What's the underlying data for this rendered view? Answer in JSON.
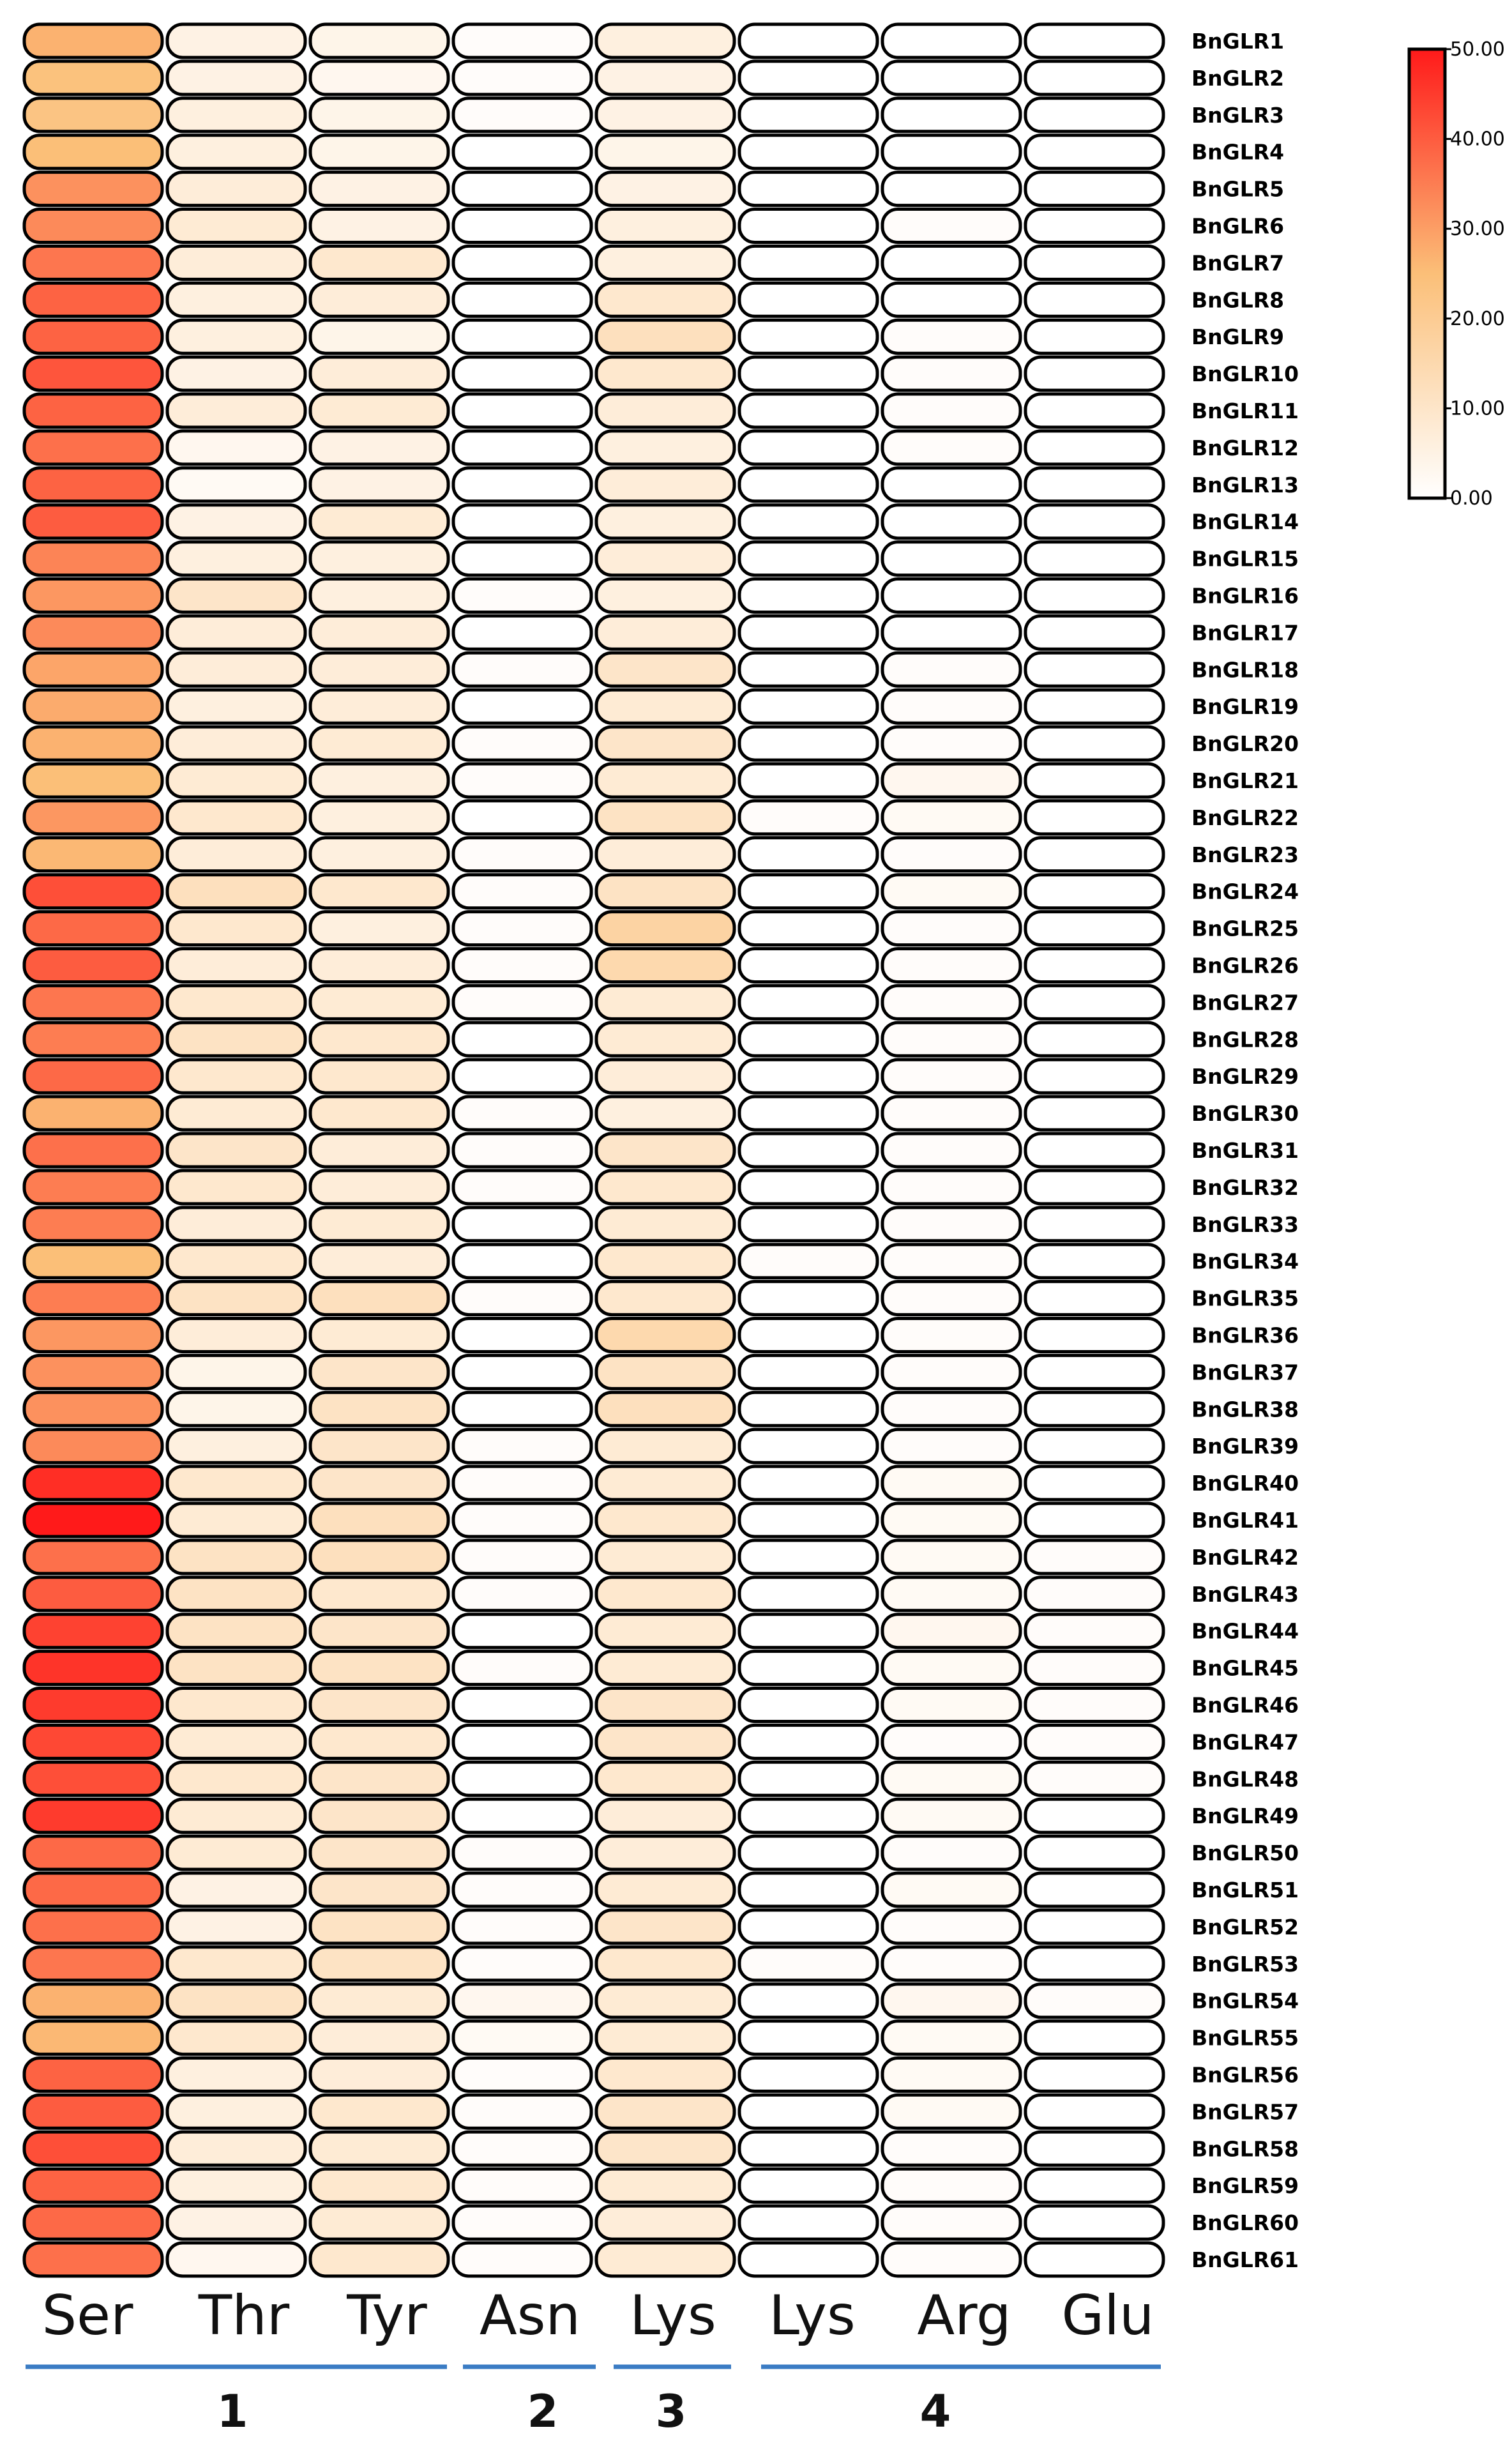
{
  "chart_data": {
    "type": "heatmap",
    "columns": [
      "Ser",
      "Thr",
      "Tyr",
      "Asn",
      "Lys",
      "Lys",
      "Arg",
      "Glu"
    ],
    "groups": [
      {
        "label": "1",
        "columns": [
          0,
          1,
          2
        ]
      },
      {
        "label": "2",
        "columns": [
          3
        ]
      },
      {
        "label": "3",
        "columns": [
          4
        ]
      },
      {
        "label": "4",
        "columns": [
          5,
          6,
          7
        ]
      }
    ],
    "rows": [
      "BnGLR1",
      "BnGLR2",
      "BnGLR3",
      "BnGLR4",
      "BnGLR5",
      "BnGLR6",
      "BnGLR7",
      "BnGLR8",
      "BnGLR9",
      "BnGLR10",
      "BnGLR11",
      "BnGLR12",
      "BnGLR13",
      "BnGLR14",
      "BnGLR15",
      "BnGLR16",
      "BnGLR17",
      "BnGLR18",
      "BnGLR19",
      "BnGLR20",
      "BnGLR21",
      "BnGLR22",
      "BnGLR23",
      "BnGLR24",
      "BnGLR25",
      "BnGLR26",
      "BnGLR27",
      "BnGLR28",
      "BnGLR29",
      "BnGLR30",
      "BnGLR31",
      "BnGLR32",
      "BnGLR33",
      "BnGLR34",
      "BnGLR35",
      "BnGLR36",
      "BnGLR37",
      "BnGLR38",
      "BnGLR39",
      "BnGLR40",
      "BnGLR41",
      "BnGLR42",
      "BnGLR43",
      "BnGLR44",
      "BnGLR45",
      "BnGLR46",
      "BnGLR47",
      "BnGLR48",
      "BnGLR49",
      "BnGLR50",
      "BnGLR51",
      "BnGLR52",
      "BnGLR53",
      "BnGLR54",
      "BnGLR55",
      "BnGLR56",
      "BnGLR57",
      "BnGLR58",
      "BnGLR59",
      "BnGLR60",
      "BnGLR61"
    ],
    "values": [
      [
        27,
        5,
        4,
        1,
        6,
        0,
        0,
        0
      ],
      [
        24,
        5,
        3,
        1,
        5,
        0,
        0,
        0
      ],
      [
        23,
        6,
        4,
        1,
        5,
        0,
        0,
        0
      ],
      [
        25,
        6,
        4,
        0,
        4,
        0,
        0,
        0
      ],
      [
        32,
        7,
        5,
        0,
        5,
        0,
        0,
        0
      ],
      [
        33,
        8,
        5,
        0,
        6,
        0,
        1,
        0
      ],
      [
        36,
        7,
        9,
        0,
        6,
        0,
        0,
        0
      ],
      [
        39,
        6,
        7,
        0,
        9,
        0,
        0,
        0
      ],
      [
        39,
        6,
        4,
        0,
        12,
        0,
        1,
        0
      ],
      [
        41,
        5,
        7,
        0,
        9,
        0,
        1,
        0
      ],
      [
        39,
        7,
        8,
        0,
        7,
        0,
        1,
        0
      ],
      [
        37,
        3,
        5,
        0,
        6,
        0,
        1,
        0
      ],
      [
        39,
        2,
        5,
        0,
        7,
        0,
        0,
        0
      ],
      [
        40,
        5,
        8,
        0,
        6,
        0,
        0,
        0
      ],
      [
        34,
        6,
        6,
        0,
        7,
        0,
        0,
        0
      ],
      [
        31,
        10,
        6,
        1,
        6,
        0,
        0,
        0
      ],
      [
        33,
        7,
        7,
        0,
        7,
        0,
        0,
        0
      ],
      [
        29,
        7,
        7,
        1,
        10,
        0,
        1,
        0
      ],
      [
        28,
        6,
        7,
        0,
        8,
        0,
        1,
        0
      ],
      [
        27,
        7,
        8,
        1,
        10,
        0,
        1,
        0
      ],
      [
        25,
        8,
        6,
        1,
        8,
        0,
        3,
        0
      ],
      [
        31,
        9,
        6,
        0,
        11,
        1,
        2,
        0
      ],
      [
        26,
        7,
        6,
        1,
        7,
        0,
        1,
        0
      ],
      [
        42,
        12,
        9,
        1,
        11,
        0,
        2,
        0
      ],
      [
        38,
        9,
        6,
        1,
        17,
        0,
        1,
        0
      ],
      [
        40,
        7,
        7,
        1,
        15,
        0,
        1,
        0
      ],
      [
        36,
        9,
        8,
        1,
        8,
        0,
        1,
        0
      ],
      [
        35,
        11,
        9,
        0,
        8,
        0,
        1,
        0
      ],
      [
        38,
        9,
        9,
        0,
        7,
        0,
        1,
        0
      ],
      [
        27,
        8,
        9,
        1,
        6,
        0,
        1,
        0
      ],
      [
        37,
        10,
        7,
        1,
        10,
        0,
        1,
        0
      ],
      [
        35,
        9,
        7,
        1,
        9,
        0,
        1,
        0
      ],
      [
        35,
        7,
        8,
        0,
        8,
        0,
        1,
        0
      ],
      [
        25,
        9,
        7,
        0,
        9,
        1,
        1,
        0
      ],
      [
        35,
        11,
        12,
        1,
        9,
        0,
        1,
        0
      ],
      [
        31,
        7,
        8,
        0,
        15,
        0,
        1,
        0
      ],
      [
        32,
        4,
        10,
        0,
        11,
        0,
        1,
        0
      ],
      [
        32,
        4,
        11,
        0,
        12,
        0,
        1,
        0
      ],
      [
        33,
        6,
        10,
        1,
        8,
        0,
        1,
        0
      ],
      [
        47,
        9,
        10,
        1,
        8,
        0,
        2,
        0
      ],
      [
        50,
        8,
        12,
        1,
        9,
        0,
        2,
        0
      ],
      [
        37,
        11,
        12,
        1,
        8,
        0,
        2,
        1
      ],
      [
        40,
        11,
        9,
        1,
        9,
        0,
        2,
        1
      ],
      [
        44,
        11,
        10,
        0,
        8,
        0,
        3,
        1
      ],
      [
        46,
        11,
        11,
        1,
        8,
        0,
        2,
        1
      ],
      [
        45,
        9,
        10,
        0,
        10,
        0,
        2,
        1
      ],
      [
        43,
        8,
        9,
        0,
        10,
        0,
        1,
        1
      ],
      [
        42,
        9,
        10,
        0,
        9,
        0,
        2,
        1
      ],
      [
        45,
        8,
        10,
        0,
        7,
        0,
        2,
        0
      ],
      [
        38,
        8,
        10,
        1,
        7,
        0,
        1,
        0
      ],
      [
        38,
        5,
        10,
        1,
        8,
        0,
        2,
        0
      ],
      [
        37,
        5,
        11,
        1,
        10,
        0,
        1,
        0
      ],
      [
        36,
        9,
        11,
        1,
        9,
        1,
        1,
        0
      ],
      [
        27,
        11,
        8,
        3,
        8,
        0,
        3,
        1
      ],
      [
        26,
        9,
        7,
        2,
        8,
        0,
        2,
        0
      ],
      [
        39,
        6,
        7,
        1,
        9,
        0,
        2,
        0
      ],
      [
        40,
        6,
        9,
        1,
        10,
        0,
        2,
        0
      ],
      [
        42,
        7,
        8,
        1,
        10,
        0,
        1,
        0
      ],
      [
        39,
        6,
        9,
        1,
        8,
        0,
        1,
        0
      ],
      [
        38,
        5,
        8,
        1,
        7,
        0,
        1,
        0
      ],
      [
        37,
        3,
        9,
        1,
        8,
        0,
        1,
        0
      ]
    ],
    "scale": {
      "min": 0,
      "max": 50,
      "ticks": [
        "0.00",
        "10.00",
        "20.00",
        "30.00",
        "40.00",
        "50.00"
      ],
      "colors": [
        "#ffffff",
        "#fbbf78",
        "#ff1a1a"
      ]
    }
  }
}
